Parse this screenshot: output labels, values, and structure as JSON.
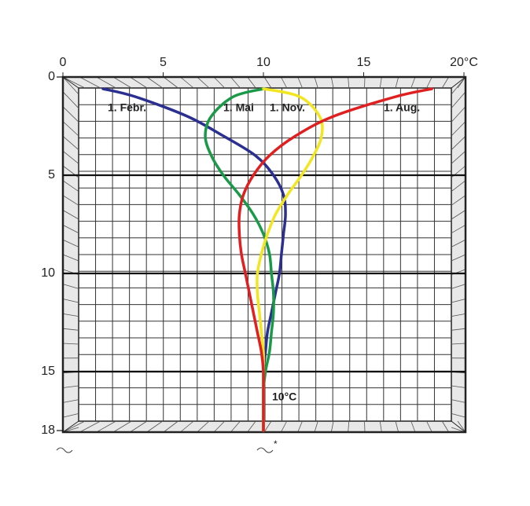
{
  "chart_data": {
    "type": "line",
    "xlim": [
      0,
      20
    ],
    "xticks": [
      0,
      5,
      10,
      15,
      {
        "value": 20,
        "label": "20°C"
      }
    ],
    "ylim": [
      0,
      18
    ],
    "yticks": [
      0,
      5,
      10,
      15,
      18
    ],
    "y_inverted": true,
    "y": [
      0.6,
      1,
      2,
      3,
      4,
      5,
      6,
      7,
      8,
      9,
      10,
      11,
      12,
      13,
      14,
      15,
      16,
      17,
      18
    ],
    "series": [
      {
        "name": "1. Febr.",
        "color": "#2b2f8f",
        "values": [
          2.0,
          3.6,
          6.2,
          8.0,
          9.6,
          10.5,
          11.0,
          11.1,
          11.0,
          10.9,
          10.8,
          10.6,
          10.4,
          10.2,
          10.1,
          10.0,
          10.0,
          10.0,
          10.0
        ]
      },
      {
        "name": "1. Mai",
        "color": "#1a9a48",
        "values": [
          10.0,
          8.5,
          7.4,
          7.1,
          7.4,
          8.0,
          8.8,
          9.5,
          10.0,
          10.3,
          10.4,
          10.5,
          10.5,
          10.4,
          10.3,
          10.1,
          10.0,
          10.0,
          10.0
        ]
      },
      {
        "name": "1. Nov.",
        "color": "#f2e620",
        "values": [
          10.0,
          11.8,
          12.8,
          12.9,
          12.5,
          11.9,
          11.2,
          10.6,
          10.2,
          9.9,
          9.7,
          9.7,
          9.8,
          9.9,
          10.0,
          10.0,
          10.0,
          10.0,
          10.0
        ]
      },
      {
        "name": "1. Aug.",
        "color": "#e02020",
        "values": [
          18.4,
          16.6,
          13.5,
          11.6,
          10.3,
          9.5,
          9.0,
          8.8,
          8.8,
          8.9,
          9.1,
          9.3,
          9.5,
          9.7,
          9.9,
          10.0,
          10.0,
          10.0,
          10.0
        ]
      }
    ],
    "annotation": "10°C"
  }
}
